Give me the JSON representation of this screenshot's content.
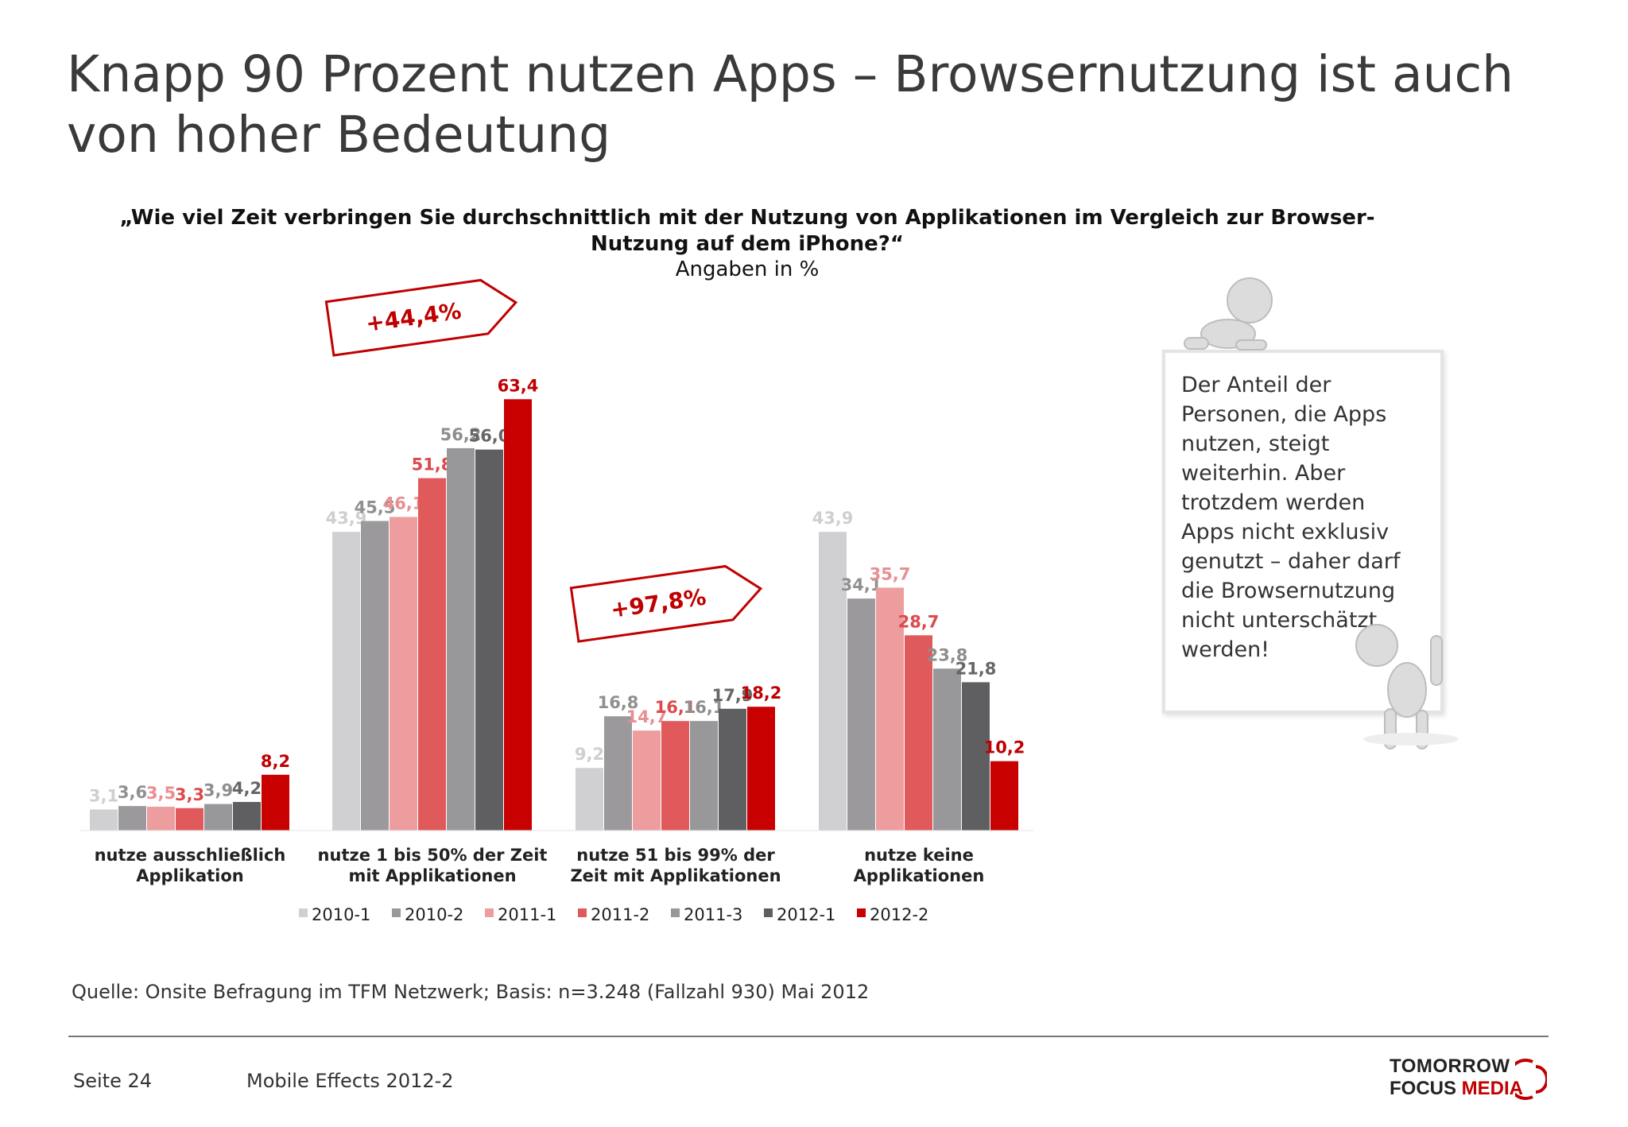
{
  "slide": {
    "title": "Knapp 90 Prozent nutzen Apps – Browsernutzung ist auch von hoher Bedeutung",
    "question": "„Wie viel Zeit verbringen Sie durchschnittlich mit der Nutzung von Applikationen im Vergleich zur Browser-Nutzung auf dem iPhone?“",
    "unit_note": "Angaben in %",
    "callout_1": "+44,4%",
    "callout_2": "+97,8%",
    "note": "Der Anteil der\nPersonen, die Apps\nnutzen, steigt\nweiterhin. Aber\ntrotzdem werden\nApps nicht exklusiv\ngenutzt – daher darf\ndie Browsernutzung\nnicht unterschätzt\nwerden!",
    "source": "Quelle: Onsite Befragung im TFM Netzwerk; Basis: n=3.248 (Fallzahl 930) Mai 2012",
    "page": "Seite 24",
    "report": "Mobile Effects 2012-2",
    "logo_line1": "TOMORROW",
    "logo_line2a": "FOCUS ",
    "logo_line2b": "MEDIA"
  },
  "chart_data": {
    "type": "bar",
    "categories": [
      "nutze ausschließlich\nApplikation",
      "nutze 1 bis 50% der Zeit\nmit Applikationen",
      "nutze 51 bis 99% der\nZeit mit Applikationen",
      "nutze keine\nApplikationen"
    ],
    "series": [
      {
        "name": "2010-1",
        "color": "#d0cfd1",
        "values": [
          3.1,
          43.9,
          9.2,
          43.9
        ]
      },
      {
        "name": "2010-2",
        "color": "#9b999c",
        "values": [
          3.6,
          45.5,
          16.8,
          34.1
        ]
      },
      {
        "name": "2011-1",
        "color": "#ee9d9f",
        "values": [
          3.5,
          46.1,
          14.7,
          35.7
        ]
      },
      {
        "name": "2011-2",
        "color": "#e05a5c",
        "values": [
          3.3,
          51.8,
          16.1,
          28.7
        ]
      },
      {
        "name": "2011-3",
        "color": "#989799",
        "values": [
          3.9,
          56.2,
          16.1,
          23.8
        ]
      },
      {
        "name": "2012-1",
        "color": "#5f5e61",
        "values": [
          4.2,
          56.0,
          17.9,
          21.8
        ]
      },
      {
        "name": "2012-2",
        "color": "#c90000",
        "values": [
          8.2,
          63.4,
          18.2,
          10.2
        ]
      }
    ],
    "labels": [
      [
        "3,1",
        "43,9",
        "9,2",
        "43,9"
      ],
      [
        "3,6",
        "45,5",
        "16,8",
        "34,1"
      ],
      [
        "3,5",
        "46,1",
        "14,7",
        "35,7"
      ],
      [
        "3,3",
        "51,8",
        "16,1",
        "28,7"
      ],
      [
        "3,9",
        "56,2",
        "16,1",
        "23,8"
      ],
      [
        "4,2",
        "56,0",
        "17,9",
        "21,8"
      ],
      [
        "8,2",
        "63,4",
        "18,2",
        "10,2"
      ]
    ],
    "label_colors": [
      "#cfcfcf",
      "#909090",
      "#e88f91",
      "#dc4a4c",
      "#8e8e8e",
      "#666666",
      "#c00000"
    ],
    "ylim": [
      0,
      70
    ],
    "grid": false,
    "legend_position": "bottom"
  }
}
